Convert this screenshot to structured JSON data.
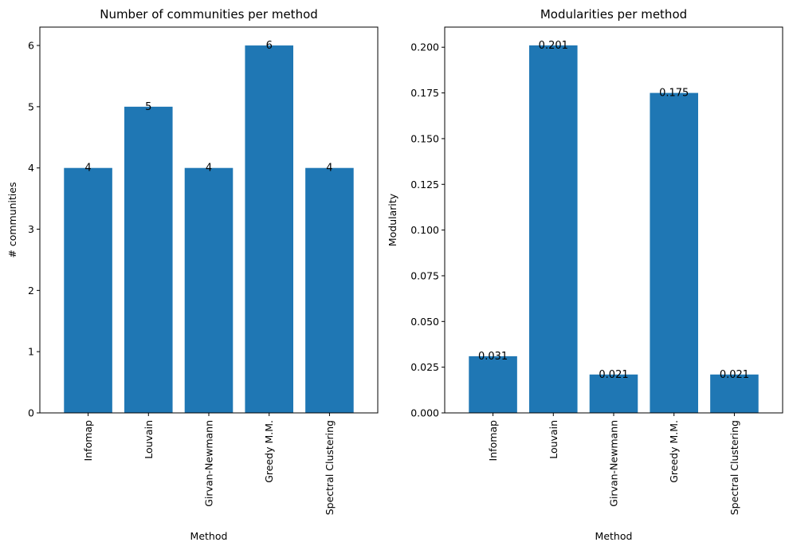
{
  "charts": [
    {
      "title": "Number of communities per method",
      "xlabel": "Method",
      "ylabel": "# communities",
      "yticks": [
        "0",
        "1",
        "2",
        "3",
        "4",
        "5",
        "6"
      ],
      "bar_labels": [
        "4",
        "5",
        "4",
        "6",
        "4"
      ]
    },
    {
      "title": "Modularities per method",
      "xlabel": "Method",
      "ylabel": "Modularity",
      "yticks": [
        "0.000",
        "0.025",
        "0.050",
        "0.075",
        "0.100",
        "0.125",
        "0.150",
        "0.175",
        "0.200"
      ],
      "bar_labels": [
        "0.031",
        "0.201",
        "0.021",
        "0.175",
        "0.021"
      ]
    }
  ],
  "chart_data": [
    {
      "type": "bar",
      "title": "Number of communities per method",
      "xlabel": "Method",
      "ylabel": "# communities",
      "categories": [
        "Infomap",
        "Louvain",
        "Girvan-Newmann",
        "Greedy M.M.",
        "Spectral Clustering"
      ],
      "values": [
        4,
        5,
        4,
        6,
        4
      ],
      "ylim": [
        0,
        6.3
      ],
      "yticks": [
        0,
        1,
        2,
        3,
        4,
        5,
        6
      ],
      "bar_color": "#1f77b4",
      "grid": false
    },
    {
      "type": "bar",
      "title": "Modularities per method",
      "xlabel": "Method",
      "ylabel": "Modularity",
      "categories": [
        "Infomap",
        "Louvain",
        "Girvan-Newmann",
        "Greedy M.M.",
        "Spectral Clustering"
      ],
      "values": [
        0.031,
        0.201,
        0.021,
        0.175,
        0.021
      ],
      "ylim": [
        0,
        0.211
      ],
      "yticks": [
        0,
        0.025,
        0.05,
        0.075,
        0.1,
        0.125,
        0.15,
        0.175,
        0.2
      ],
      "bar_color": "#1f77b4",
      "grid": false
    }
  ]
}
